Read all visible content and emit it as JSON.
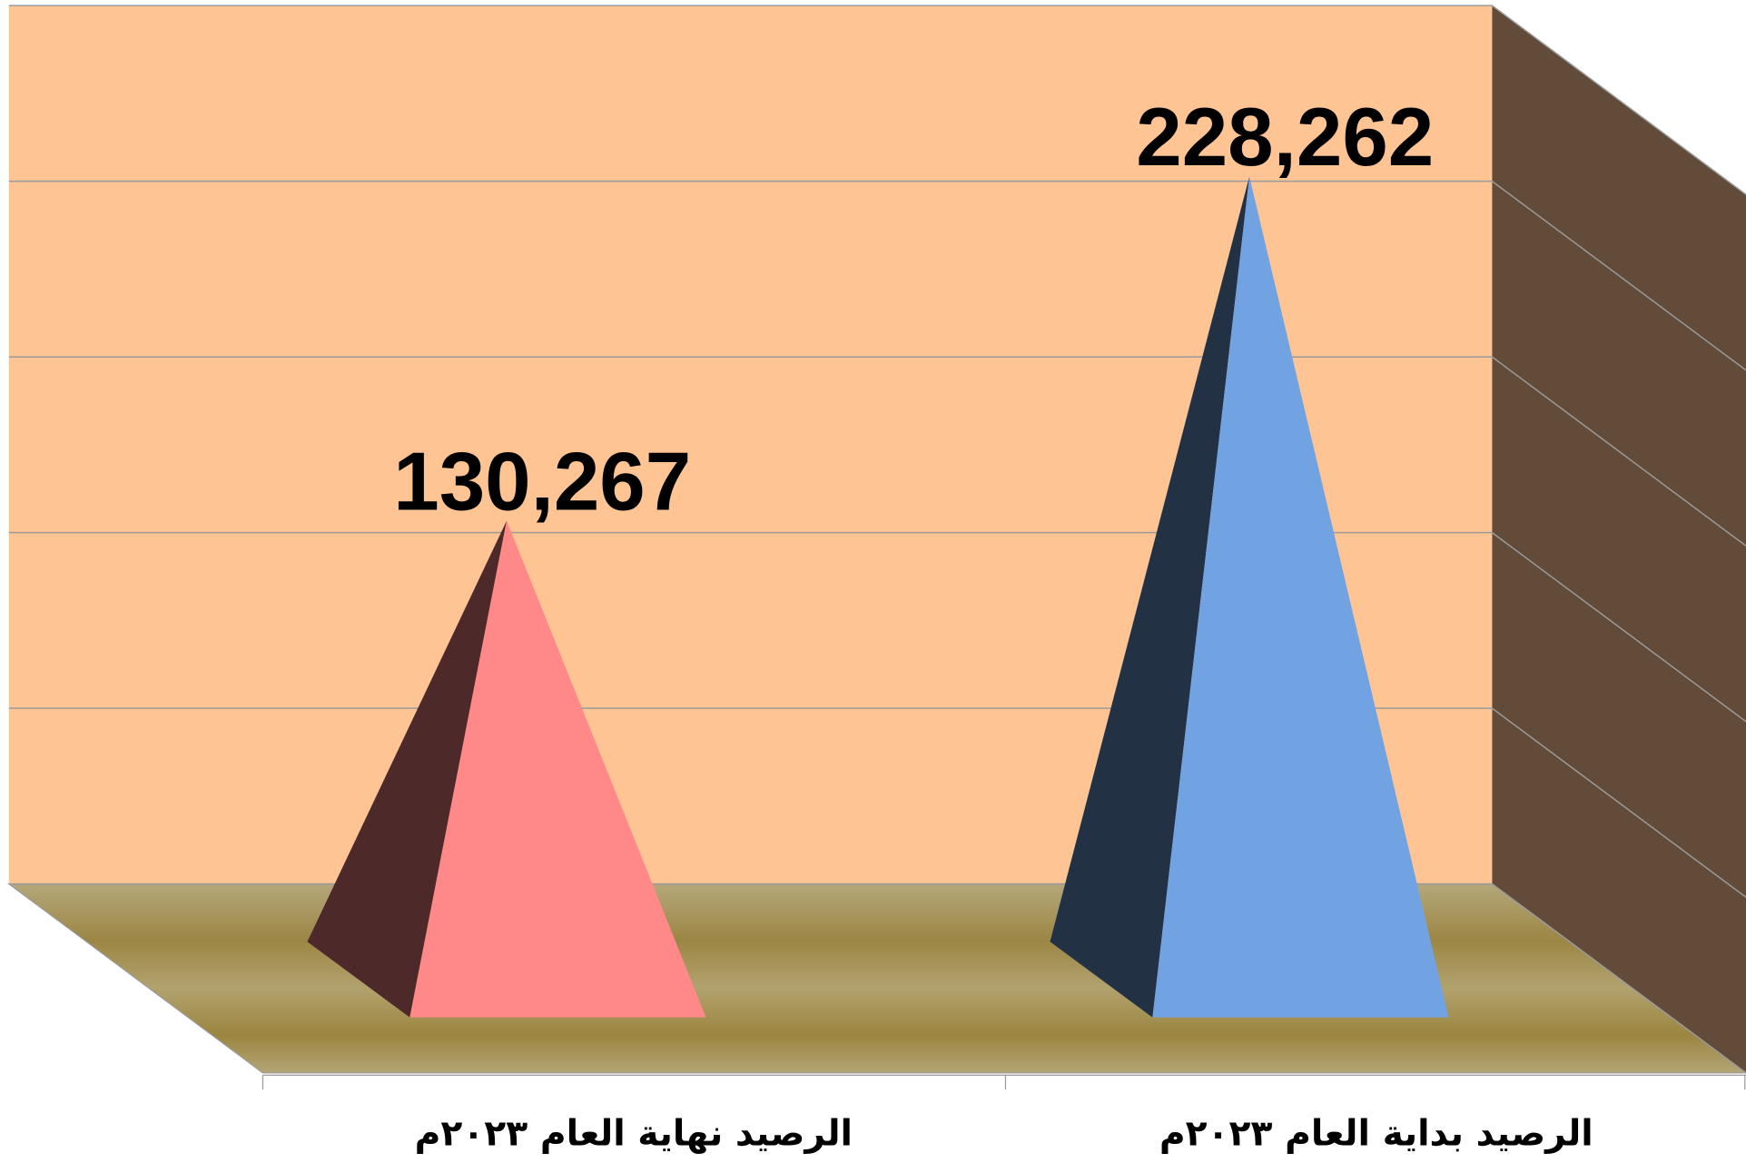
{
  "chart_data": {
    "type": "pyramid3d",
    "categories": [
      "الرصيد نهاية العام ٢٠٢٣م",
      "الرصيد بداية العام ٢٠٢٣م"
    ],
    "values": [
      130267,
      228262
    ],
    "value_labels": [
      "130,267",
      "228,262"
    ],
    "colors": [
      "#ff8888",
      "#71a3e3"
    ],
    "ylim": [
      0,
      250000
    ],
    "yticks": [
      0,
      50000,
      100000,
      150000,
      200000,
      250000
    ],
    "grid": true
  }
}
